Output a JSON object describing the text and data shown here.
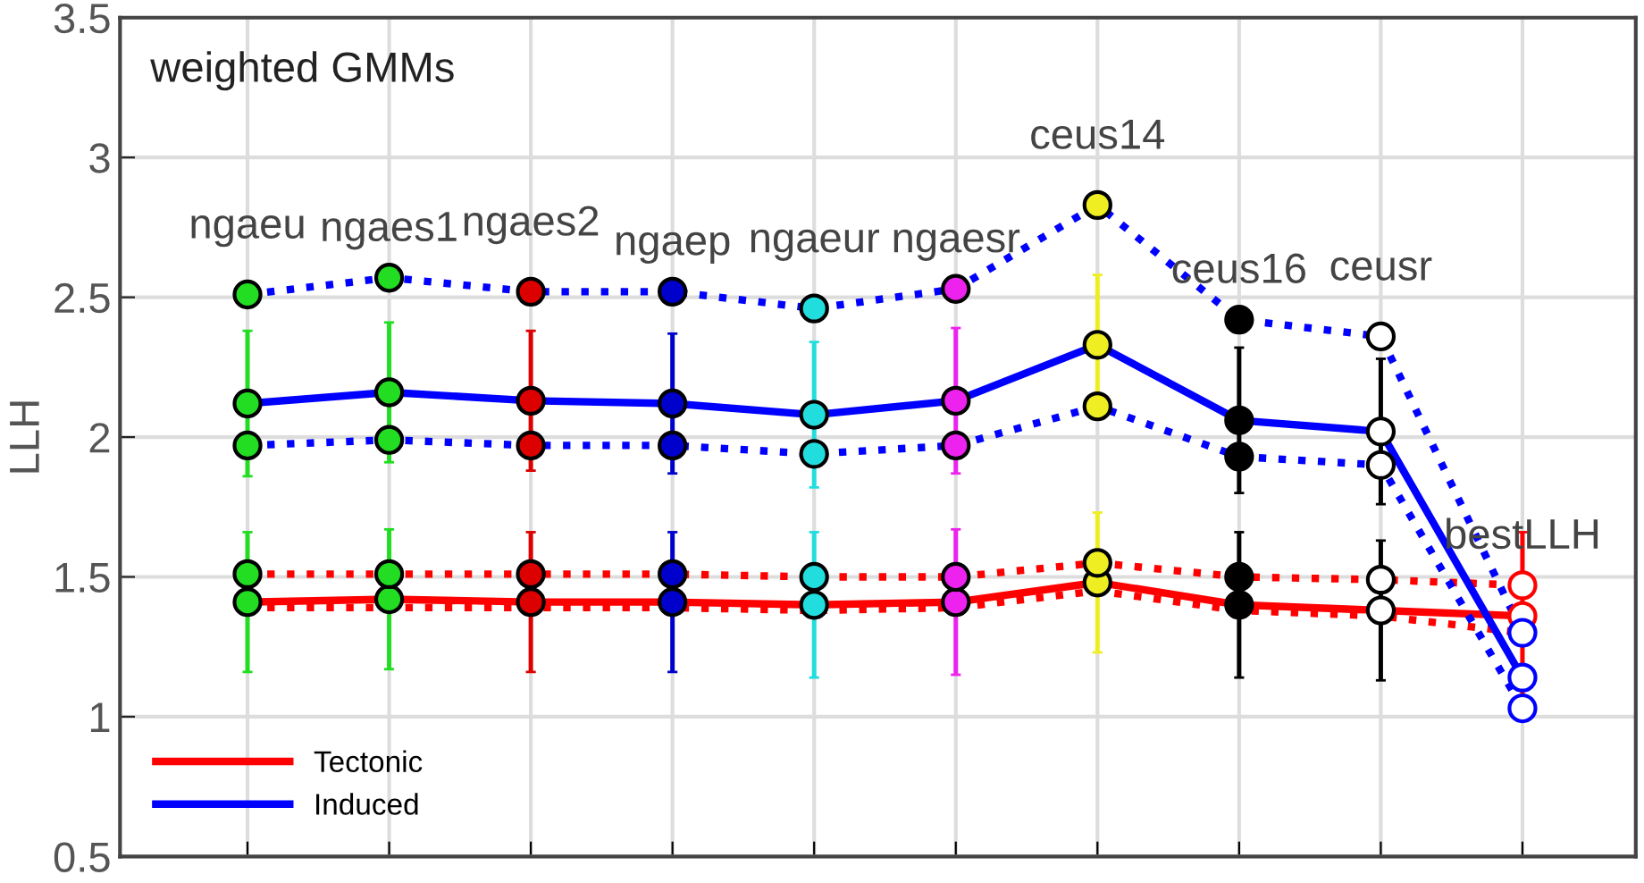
{
  "chart_data": {
    "type": "line",
    "title": "weighted GMMs",
    "ylabel": "LLH",
    "categories": [
      null,
      null,
      null,
      null,
      null,
      null,
      null,
      null,
      null,
      null
    ],
    "ylim": [
      0.5,
      3.5
    ],
    "yticks": [
      0.5,
      1,
      1.5,
      2,
      2.5,
      3,
      3.5
    ],
    "grid": true,
    "legend": "bottom left",
    "tick_labels": "y",
    "annotations": [
      "ngaeu",
      "ngaes1",
      "ngaes2",
      "ngaep",
      "ngaeur",
      "ngaesr",
      "ceus14",
      "ceus16",
      "ceusr",
      "bestLLH"
    ],
    "series": [
      {
        "name": "Tectonic",
        "color": "#ff0000",
        "line_style": "solid",
        "marker": "circle",
        "values": [
          1.41,
          1.42,
          1.41,
          1.41,
          1.4,
          1.41,
          1.48,
          1.4,
          1.38,
          1.36
        ],
        "errors": [
          0.25,
          0.25,
          0.25,
          0.25,
          0.26,
          0.26,
          0.25,
          0.26,
          0.25,
          0.3
        ],
        "colors": [
          "#22dd22",
          "#22dd22",
          "#dd0000",
          "#0000cc",
          "#22dddd",
          "#ee22ee",
          "#eeee22",
          "#000000",
          "#ffffff",
          "#ffffff"
        ]
      },
      {
        "color": "#ff0000",
        "line_style": "dotted",
        "marker": "circle",
        "values": [
          1.51,
          1.51,
          1.51,
          1.51,
          1.5,
          1.5,
          1.55,
          1.5,
          1.49,
          1.47
        ],
        "colors": [
          "#22dd22",
          "#22dd22",
          "#dd0000",
          "#0000cc",
          "#22dddd",
          "#ee22ee",
          "#eeee22",
          "#000000",
          "#ffffff",
          "#ffffff"
        ]
      },
      {
        "color": "#ff0000",
        "line_style": "dotted",
        "marker": "none",
        "values": [
          1.39,
          1.39,
          1.39,
          1.39,
          1.38,
          1.39,
          1.45,
          1.38,
          1.36,
          1.3
        ]
      },
      {
        "name": "Induced",
        "color": "#0000ff",
        "line_style": "solid",
        "marker": "circle",
        "values": [
          2.12,
          2.16,
          2.13,
          2.12,
          2.08,
          2.13,
          2.33,
          2.06,
          2.02,
          1.14
        ],
        "errors": [
          0.26,
          0.25,
          0.25,
          0.25,
          0.26,
          0.26,
          0.25,
          0.26,
          0.26,
          null
        ],
        "colors": [
          "#22dd22",
          "#22dd22",
          "#dd0000",
          "#0000cc",
          "#22dddd",
          "#ee22ee",
          "#eeee22",
          "#000000",
          "#ffffff",
          "#ffffff"
        ]
      },
      {
        "color": "#0000ff",
        "line_style": "dotted",
        "marker": "circle",
        "values": [
          2.51,
          2.57,
          2.52,
          2.52,
          2.46,
          2.53,
          2.83,
          2.42,
          2.36,
          1.3
        ],
        "colors": [
          "#22dd22",
          "#22dd22",
          "#dd0000",
          "#0000cc",
          "#22dddd",
          "#ee22ee",
          "#eeee22",
          "#000000",
          "#ffffff",
          "#ffffff"
        ]
      },
      {
        "color": "#0000ff",
        "line_style": "dotted",
        "marker": "circle",
        "values": [
          1.97,
          1.99,
          1.97,
          1.97,
          1.94,
          1.97,
          2.11,
          1.93,
          1.9,
          1.03
        ],
        "colors": [
          "#22dd22",
          "#22dd22",
          "#dd0000",
          "#0000cc",
          "#22dddd",
          "#ee22ee",
          "#eeee22",
          "#000000",
          "#ffffff",
          "#ffffff"
        ]
      }
    ]
  }
}
